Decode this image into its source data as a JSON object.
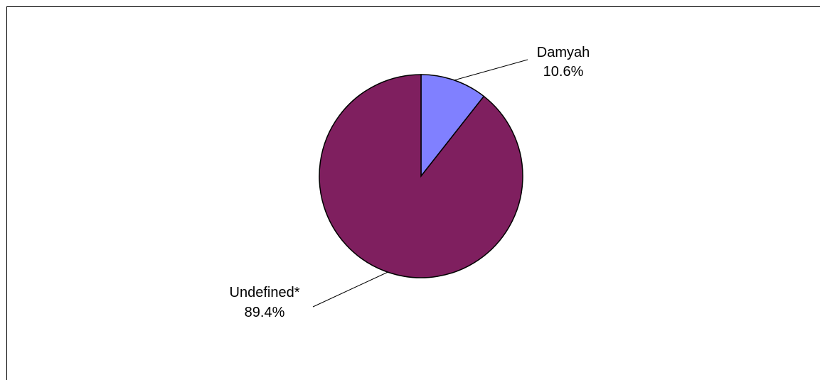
{
  "chart_data": {
    "type": "pie",
    "slices": [
      {
        "label": "Damyah",
        "value": 10.6,
        "value_label": "10.6%",
        "color": "#8080ff"
      },
      {
        "label": "Undefined*",
        "value": 89.4,
        "value_label": "89.4%",
        "color": "#7f1f5f"
      }
    ],
    "start_angle_deg": 0,
    "direction": "clockwise",
    "legend": "none",
    "slice_border_color": "#000000",
    "leader_line_color": "#000000"
  }
}
